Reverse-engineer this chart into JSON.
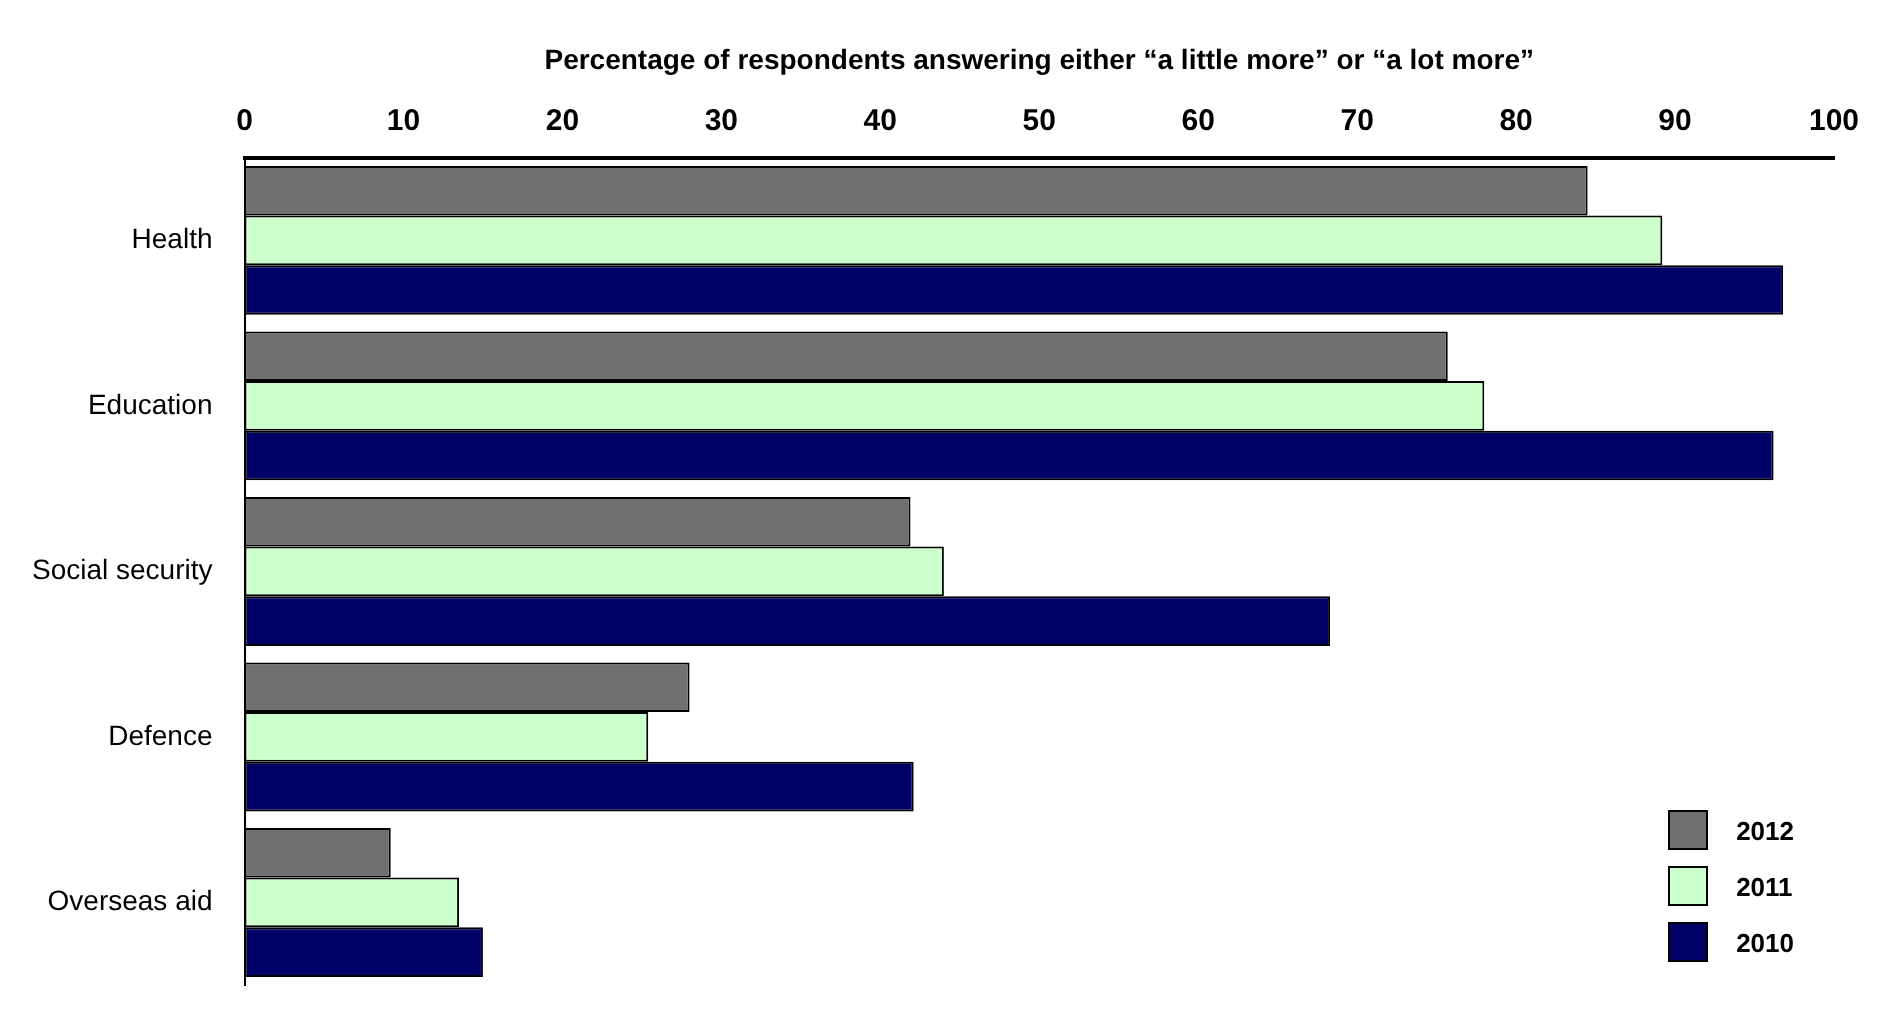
{
  "chart_data": {
    "type": "bar",
    "orientation": "horizontal",
    "xlabel": "Percentage of respondents answering either “a little more” or “a lot more”",
    "categories": [
      "Health",
      "Education",
      "Social security",
      "Defence",
      "Overseas aid"
    ],
    "series": [
      {
        "name": "2012",
        "color": "#707070",
        "values": [
          84.5,
          75.7,
          41.9,
          28,
          9.2
        ]
      },
      {
        "name": "2011",
        "color": "#ccffcc",
        "values": [
          89.2,
          78,
          44,
          25.4,
          13.5
        ]
      },
      {
        "name": "2010",
        "color": "#000066",
        "values": [
          96.8,
          96.2,
          68.3,
          42.1,
          15
        ]
      }
    ],
    "xlim": [
      0,
      100
    ],
    "xticks": [
      0,
      10,
      20,
      30,
      40,
      50,
      60,
      70,
      80,
      90,
      100
    ],
    "grid": false,
    "legend": "bottom right"
  }
}
